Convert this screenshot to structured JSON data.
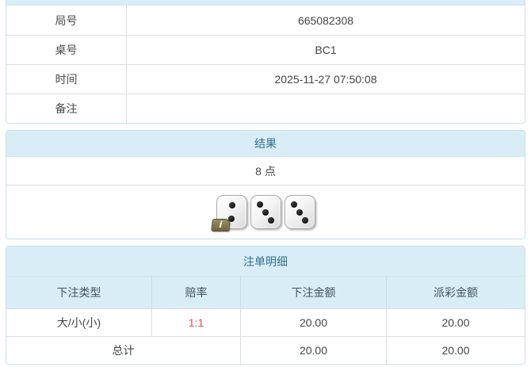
{
  "game_info": {
    "rows": [
      {
        "label": "局号",
        "value": "665082308"
      },
      {
        "label": "桌号",
        "value": "BC1"
      },
      {
        "label": "时间",
        "value": "2025-11-27 07:50:08"
      },
      {
        "label": "备注",
        "value": ""
      }
    ]
  },
  "result": {
    "header": "结果",
    "points": "8 点",
    "dice": [
      2,
      3,
      3
    ],
    "info_badge": "i"
  },
  "bets": {
    "header": "注单明细",
    "columns": [
      "下注类型",
      "赔率",
      "下注金额",
      "派彩金额"
    ],
    "rows": [
      {
        "type": "大/小(小)",
        "odds": "1:1",
        "bet_amount": "20.00",
        "payout": "20.00"
      }
    ],
    "total": {
      "label": "总计",
      "bet_amount": "20.00",
      "payout": "20.00"
    }
  },
  "colors": {
    "header_bg": "#d9edf7",
    "header_text": "#31708f",
    "panel_border": "#c7e1ec",
    "cell_border": "#dddddd",
    "odds_red": "#e05050",
    "col_header_text": "#45545d",
    "badge_bg": "#877c52"
  }
}
